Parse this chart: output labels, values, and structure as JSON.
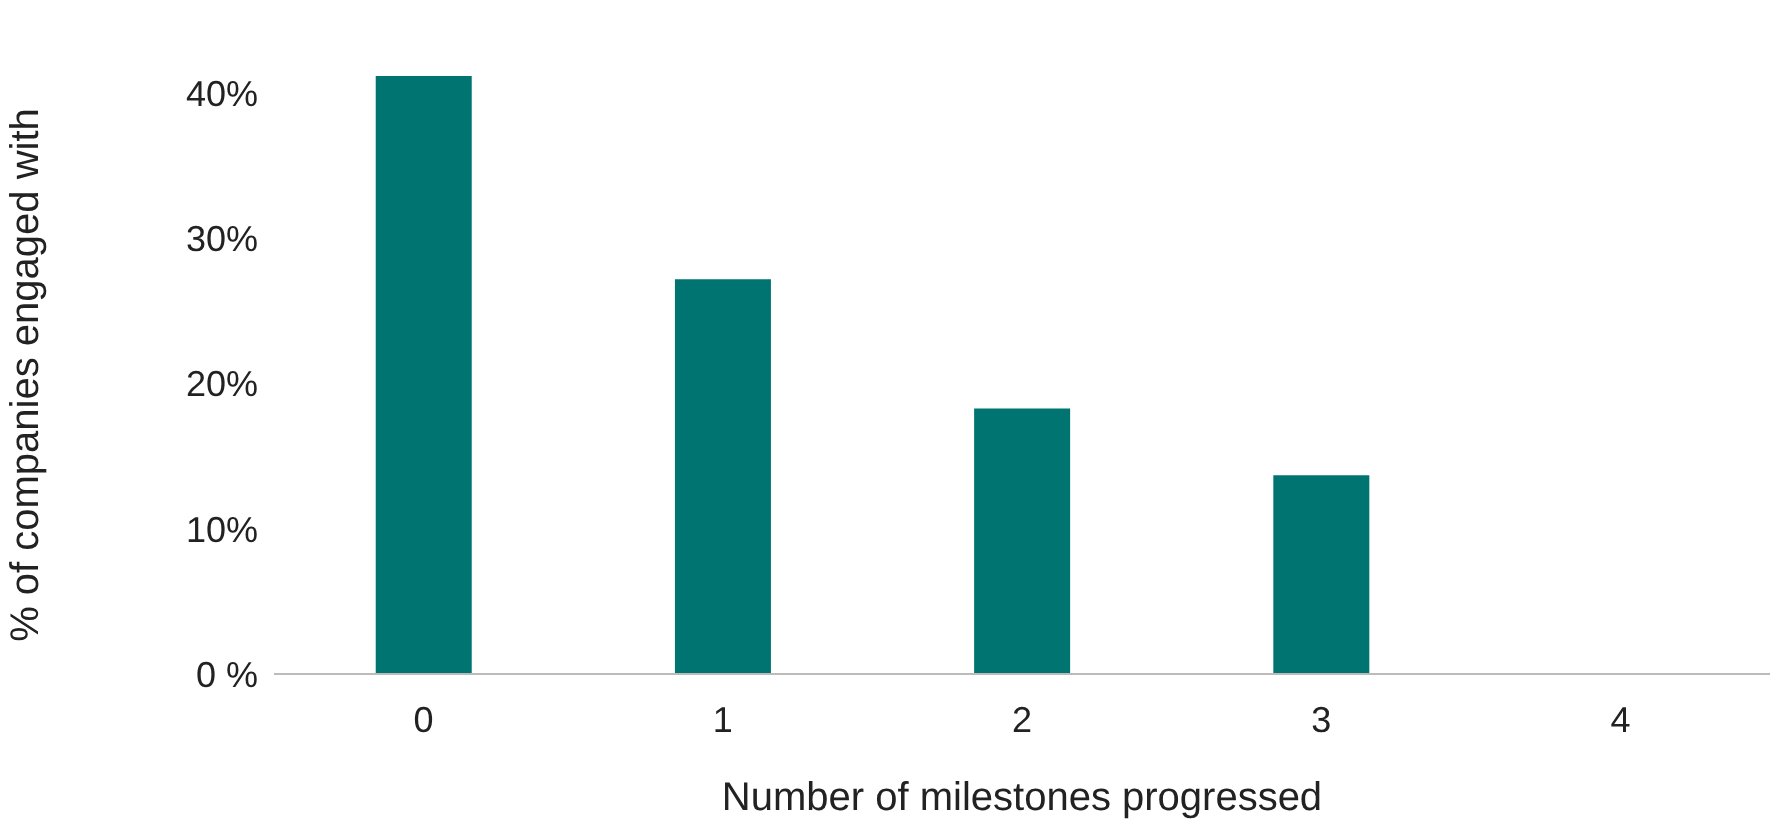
{
  "chart_data": {
    "type": "bar",
    "xlabel": "Number of milestones progressed",
    "ylabel": "% of companies engaged with",
    "categories": [
      "0",
      "1",
      "2",
      "3",
      "4"
    ],
    "values": [
      41.2,
      27.2,
      18.3,
      13.7,
      0
    ],
    "color": "#007471",
    "ylim": [
      0,
      41.2
    ],
    "yticks": [
      {
        "value": 0,
        "label": "0 %"
      },
      {
        "value": 10,
        "label": "10%"
      },
      {
        "value": 20,
        "label": "20%"
      },
      {
        "value": 30,
        "label": "30%"
      },
      {
        "value": 40,
        "label": "40%"
      }
    ],
    "grid": false,
    "legend": false
  }
}
